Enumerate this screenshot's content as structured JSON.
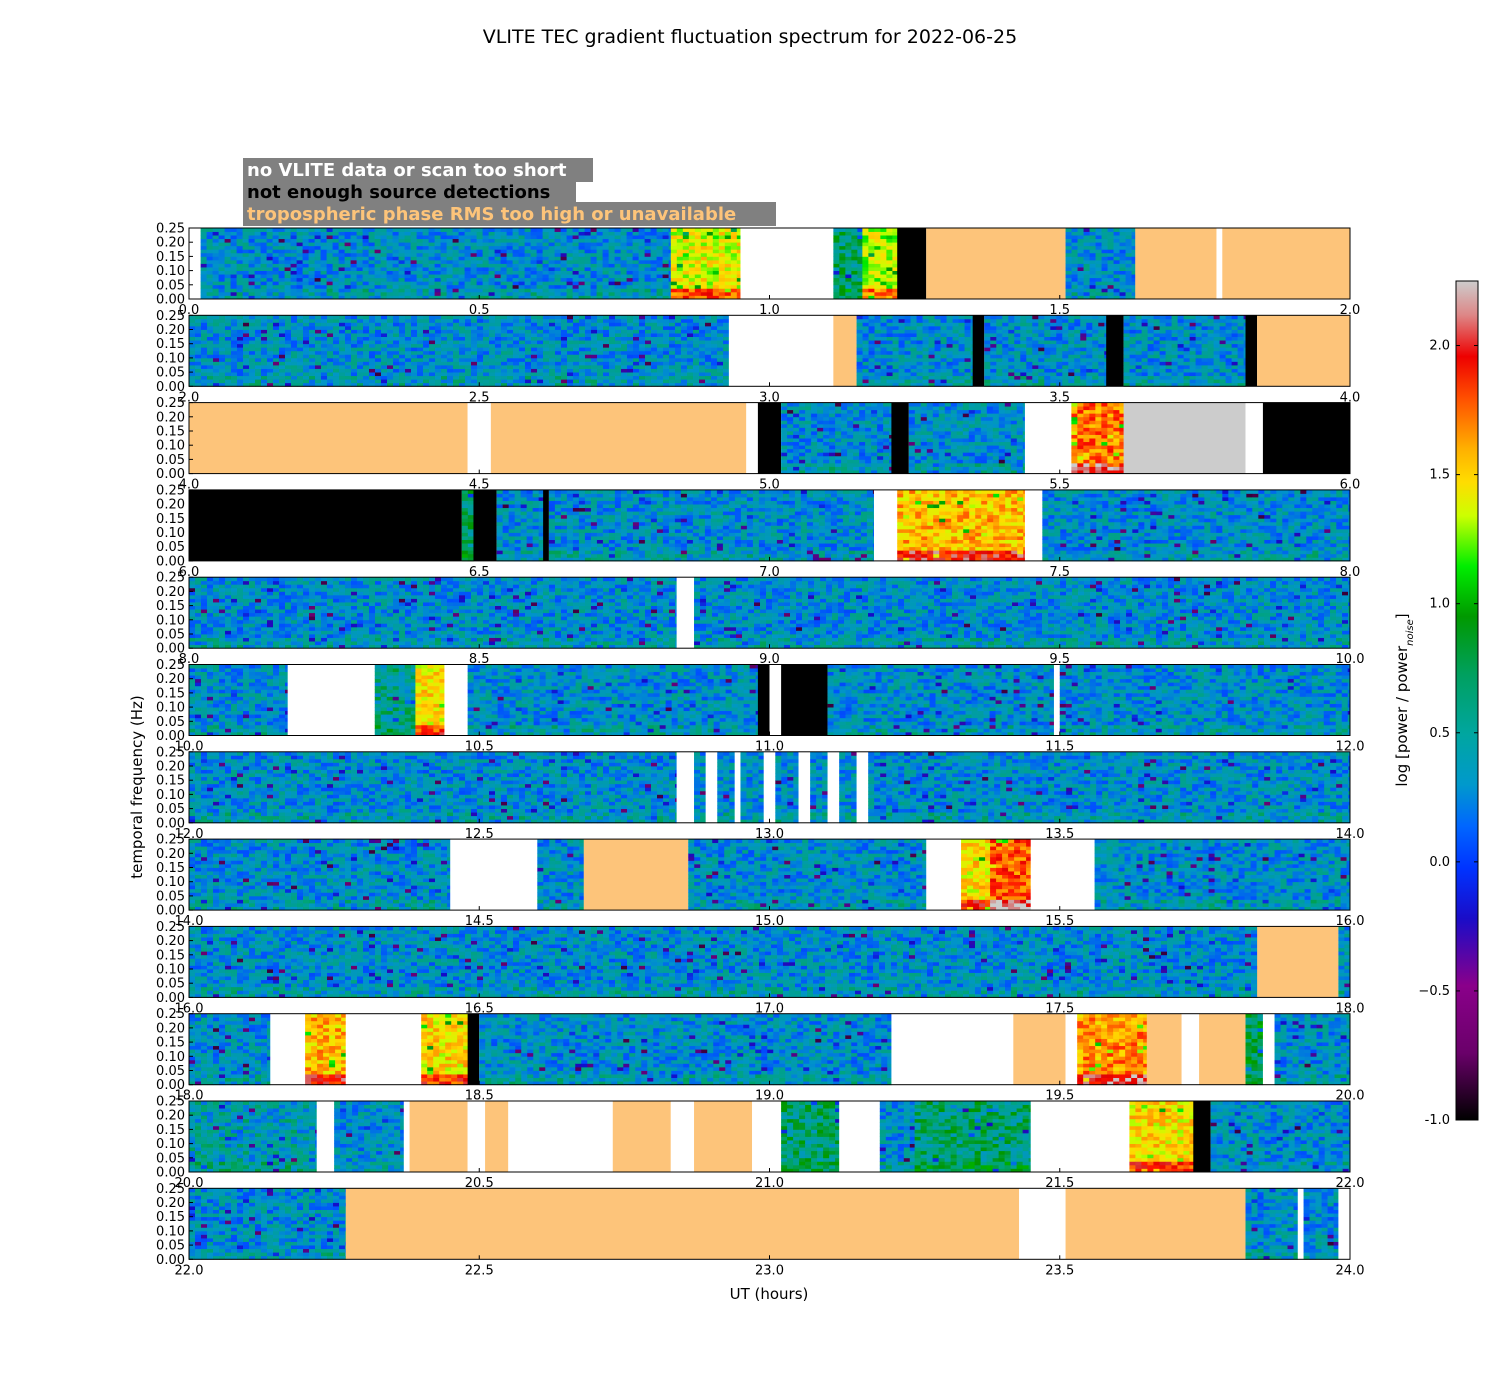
{
  "chart_data": {
    "type": "heatmap",
    "title": "VLITE TEC gradient fluctuation spectrum for 2022-06-25",
    "xlabel": "UT (hours)",
    "ylabel": "temporal frequency (Hz)",
    "colorbar_label": "log [power / power",
    "colorbar_label_sub": "noise",
    "colorbar_label_end": "]",
    "colorbar_range": [
      -1.0,
      2.25
    ],
    "colorbar_ticks": [
      "-1.0",
      "−0.5",
      "0.0",
      "0.5",
      "1.0",
      "1.5",
      "2.0"
    ],
    "colorbar_tick_values": [
      -1.0,
      -0.5,
      0.0,
      0.5,
      1.0,
      1.5,
      2.0
    ],
    "ylim": [
      0.0,
      0.25
    ],
    "y_ticks": [
      "0.00",
      "0.05",
      "0.10",
      "0.15",
      "0.20",
      "0.25"
    ],
    "legend": [
      {
        "label": "no VLITE data or scan too short",
        "text_color": "#ffffff",
        "bg_color": "#808080"
      },
      {
        "label": "not enough source detections",
        "text_color": "#000000",
        "bg_color": "#808080"
      },
      {
        "label": "tropospheric phase RMS too high or unavailable",
        "text_color": "#fdc47a",
        "bg_color": "#808080"
      }
    ],
    "flag_colors": {
      "nodata": "#ffffff",
      "nodet": "#000000",
      "trop": "#fdc47a",
      "saturated": "#cccccc"
    },
    "panels": [
      {
        "range": [
          0,
          2
        ],
        "ticks": [
          "0.0",
          "0.5",
          "1.0",
          "1.5",
          "2.0"
        ],
        "segments": [
          {
            "start": 0.0,
            "end": 0.02,
            "kind": "nodata"
          },
          {
            "start": 0.02,
            "end": 0.83,
            "kind": "data",
            "level": 0.0
          },
          {
            "start": 0.83,
            "end": 0.95,
            "kind": "data",
            "level": 1.2
          },
          {
            "start": 0.95,
            "end": 1.11,
            "kind": "nodata"
          },
          {
            "start": 1.11,
            "end": 1.16,
            "kind": "data",
            "level": 0.3
          },
          {
            "start": 1.16,
            "end": 1.22,
            "kind": "data",
            "level": 1.1
          },
          {
            "start": 1.22,
            "end": 1.27,
            "kind": "nodet"
          },
          {
            "start": 1.27,
            "end": 1.51,
            "kind": "trop"
          },
          {
            "start": 1.51,
            "end": 1.63,
            "kind": "data",
            "level": 0.0
          },
          {
            "start": 1.63,
            "end": 1.77,
            "kind": "trop"
          },
          {
            "start": 1.77,
            "end": 1.78,
            "kind": "nodata"
          },
          {
            "start": 1.78,
            "end": 2.0,
            "kind": "trop"
          }
        ]
      },
      {
        "range": [
          2,
          4
        ],
        "ticks": [
          "2.0",
          "2.5",
          "3.0",
          "3.5",
          "4.0"
        ],
        "segments": [
          {
            "start": 2.0,
            "end": 2.93,
            "kind": "data",
            "level": 0.0
          },
          {
            "start": 2.93,
            "end": 3.11,
            "kind": "nodata"
          },
          {
            "start": 3.11,
            "end": 3.15,
            "kind": "trop"
          },
          {
            "start": 3.15,
            "end": 3.35,
            "kind": "data",
            "level": 0.0
          },
          {
            "start": 3.35,
            "end": 3.37,
            "kind": "nodet"
          },
          {
            "start": 3.37,
            "end": 3.58,
            "kind": "data",
            "level": 0.0
          },
          {
            "start": 3.58,
            "end": 3.61,
            "kind": "nodet"
          },
          {
            "start": 3.61,
            "end": 3.82,
            "kind": "data",
            "level": 0.0
          },
          {
            "start": 3.82,
            "end": 3.84,
            "kind": "nodet"
          },
          {
            "start": 3.84,
            "end": 4.0,
            "kind": "trop"
          }
        ]
      },
      {
        "range": [
          4,
          6
        ],
        "ticks": [
          "4.0",
          "4.5",
          "5.0",
          "5.5",
          "6.0"
        ],
        "segments": [
          {
            "start": 4.0,
            "end": 4.48,
            "kind": "trop"
          },
          {
            "start": 4.48,
            "end": 4.52,
            "kind": "nodata"
          },
          {
            "start": 4.52,
            "end": 4.96,
            "kind": "trop"
          },
          {
            "start": 4.96,
            "end": 4.98,
            "kind": "nodata"
          },
          {
            "start": 4.98,
            "end": 5.02,
            "kind": "nodet"
          },
          {
            "start": 5.02,
            "end": 5.21,
            "kind": "data",
            "level": 0.0
          },
          {
            "start": 5.21,
            "end": 5.24,
            "kind": "nodet"
          },
          {
            "start": 5.24,
            "end": 5.44,
            "kind": "data",
            "level": 0.0
          },
          {
            "start": 5.44,
            "end": 5.52,
            "kind": "nodata"
          },
          {
            "start": 5.52,
            "end": 5.61,
            "kind": "data",
            "level": 1.6
          },
          {
            "start": 5.61,
            "end": 5.82,
            "kind": "saturated"
          },
          {
            "start": 5.82,
            "end": 5.85,
            "kind": "nodata"
          },
          {
            "start": 5.85,
            "end": 6.0,
            "kind": "nodet"
          }
        ]
      },
      {
        "range": [
          6,
          8
        ],
        "ticks": [
          "6.0",
          "6.5",
          "7.0",
          "7.5",
          "8.0"
        ],
        "segments": [
          {
            "start": 6.0,
            "end": 6.47,
            "kind": "nodet"
          },
          {
            "start": 6.47,
            "end": 6.49,
            "kind": "data",
            "level": 0.3
          },
          {
            "start": 6.49,
            "end": 6.53,
            "kind": "nodet"
          },
          {
            "start": 6.53,
            "end": 6.61,
            "kind": "data",
            "level": 0.0
          },
          {
            "start": 6.61,
            "end": 6.62,
            "kind": "nodet"
          },
          {
            "start": 6.62,
            "end": 7.18,
            "kind": "data",
            "level": 0.0
          },
          {
            "start": 7.18,
            "end": 7.22,
            "kind": "nodata"
          },
          {
            "start": 7.22,
            "end": 7.44,
            "kind": "data",
            "level": 1.4
          },
          {
            "start": 7.44,
            "end": 7.47,
            "kind": "nodata"
          },
          {
            "start": 7.47,
            "end": 8.0,
            "kind": "data",
            "level": 0.0
          }
        ]
      },
      {
        "range": [
          8,
          10
        ],
        "ticks": [
          "8.0",
          "8.5",
          "9.0",
          "9.5",
          "10.0"
        ],
        "segments": [
          {
            "start": 8.0,
            "end": 8.84,
            "kind": "data",
            "level": 0.0
          },
          {
            "start": 8.84,
            "end": 8.87,
            "kind": "nodata"
          },
          {
            "start": 8.87,
            "end": 10.0,
            "kind": "data",
            "level": 0.0
          }
        ]
      },
      {
        "range": [
          10,
          12
        ],
        "ticks": [
          "10.0",
          "10.5",
          "11.0",
          "11.5",
          "12.0"
        ],
        "segments": [
          {
            "start": 10.0,
            "end": 10.17,
            "kind": "data",
            "level": 0.0
          },
          {
            "start": 10.17,
            "end": 10.32,
            "kind": "nodata"
          },
          {
            "start": 10.32,
            "end": 10.39,
            "kind": "data",
            "level": 0.2
          },
          {
            "start": 10.39,
            "end": 10.44,
            "kind": "data",
            "level": 1.3
          },
          {
            "start": 10.44,
            "end": 10.48,
            "kind": "nodata"
          },
          {
            "start": 10.48,
            "end": 10.98,
            "kind": "data",
            "level": 0.0
          },
          {
            "start": 10.98,
            "end": 11.0,
            "kind": "nodet"
          },
          {
            "start": 11.0,
            "end": 11.02,
            "kind": "nodata"
          },
          {
            "start": 11.02,
            "end": 11.1,
            "kind": "nodet"
          },
          {
            "start": 11.1,
            "end": 11.49,
            "kind": "data",
            "level": 0.0
          },
          {
            "start": 11.49,
            "end": 11.5,
            "kind": "nodata"
          },
          {
            "start": 11.5,
            "end": 12.0,
            "kind": "data",
            "level": 0.0
          }
        ]
      },
      {
        "range": [
          12,
          14
        ],
        "ticks": [
          "12.0",
          "12.5",
          "13.0",
          "13.5",
          "14.0"
        ],
        "segments": [
          {
            "start": 12.0,
            "end": 12.84,
            "kind": "data",
            "level": 0.0
          },
          {
            "start": 12.84,
            "end": 12.87,
            "kind": "nodata"
          },
          {
            "start": 12.87,
            "end": 12.89,
            "kind": "data",
            "level": 0.0
          },
          {
            "start": 12.89,
            "end": 12.91,
            "kind": "nodata"
          },
          {
            "start": 12.91,
            "end": 12.94,
            "kind": "data",
            "level": 0.0
          },
          {
            "start": 12.94,
            "end": 12.95,
            "kind": "nodata"
          },
          {
            "start": 12.95,
            "end": 12.99,
            "kind": "data",
            "level": 0.0
          },
          {
            "start": 12.99,
            "end": 13.01,
            "kind": "nodata"
          },
          {
            "start": 13.01,
            "end": 13.05,
            "kind": "data",
            "level": 0.0
          },
          {
            "start": 13.05,
            "end": 13.07,
            "kind": "nodata"
          },
          {
            "start": 13.07,
            "end": 13.1,
            "kind": "data",
            "level": 0.0
          },
          {
            "start": 13.1,
            "end": 13.12,
            "kind": "nodata"
          },
          {
            "start": 13.12,
            "end": 13.15,
            "kind": "data",
            "level": 0.0
          },
          {
            "start": 13.15,
            "end": 13.17,
            "kind": "nodata"
          },
          {
            "start": 13.17,
            "end": 14.0,
            "kind": "data",
            "level": 0.0
          }
        ]
      },
      {
        "range": [
          14,
          16
        ],
        "ticks": [
          "14.0",
          "14.5",
          "15.0",
          "15.5",
          "16.0"
        ],
        "segments": [
          {
            "start": 14.0,
            "end": 14.45,
            "kind": "data",
            "level": 0.0
          },
          {
            "start": 14.45,
            "end": 14.6,
            "kind": "nodata"
          },
          {
            "start": 14.6,
            "end": 14.68,
            "kind": "data",
            "level": 0.0
          },
          {
            "start": 14.68,
            "end": 14.86,
            "kind": "trop"
          },
          {
            "start": 14.86,
            "end": 15.27,
            "kind": "data",
            "level": 0.0
          },
          {
            "start": 15.27,
            "end": 15.33,
            "kind": "nodata"
          },
          {
            "start": 15.33,
            "end": 15.38,
            "kind": "data",
            "level": 1.3
          },
          {
            "start": 15.38,
            "end": 15.45,
            "kind": "data",
            "level": 1.7
          },
          {
            "start": 15.45,
            "end": 15.56,
            "kind": "nodata"
          },
          {
            "start": 15.56,
            "end": 16.0,
            "kind": "data",
            "level": 0.0
          }
        ]
      },
      {
        "range": [
          16,
          18
        ],
        "ticks": [
          "16.0",
          "16.5",
          "17.0",
          "17.5",
          "18.0"
        ],
        "segments": [
          {
            "start": 16.0,
            "end": 17.84,
            "kind": "data",
            "level": 0.0
          },
          {
            "start": 17.84,
            "end": 17.98,
            "kind": "trop"
          },
          {
            "start": 17.98,
            "end": 18.0,
            "kind": "data",
            "level": 0.0
          }
        ]
      },
      {
        "range": [
          18,
          20
        ],
        "ticks": [
          "18.0",
          "18.5",
          "19.0",
          "19.5",
          "20.0"
        ],
        "segments": [
          {
            "start": 18.0,
            "end": 18.14,
            "kind": "data",
            "level": 0.0
          },
          {
            "start": 18.14,
            "end": 18.2,
            "kind": "nodata"
          },
          {
            "start": 18.2,
            "end": 18.27,
            "kind": "data",
            "level": 1.4
          },
          {
            "start": 18.27,
            "end": 18.4,
            "kind": "nodata"
          },
          {
            "start": 18.4,
            "end": 18.48,
            "kind": "data",
            "level": 1.3
          },
          {
            "start": 18.48,
            "end": 18.5,
            "kind": "nodet"
          },
          {
            "start": 18.5,
            "end": 19.21,
            "kind": "data",
            "level": 0.0
          },
          {
            "start": 19.21,
            "end": 19.42,
            "kind": "nodata"
          },
          {
            "start": 19.42,
            "end": 19.51,
            "kind": "trop"
          },
          {
            "start": 19.51,
            "end": 19.53,
            "kind": "nodata"
          },
          {
            "start": 19.53,
            "end": 19.65,
            "kind": "data",
            "level": 1.5
          },
          {
            "start": 19.65,
            "end": 19.71,
            "kind": "trop"
          },
          {
            "start": 19.71,
            "end": 19.74,
            "kind": "nodata"
          },
          {
            "start": 19.74,
            "end": 19.82,
            "kind": "trop"
          },
          {
            "start": 19.82,
            "end": 19.85,
            "kind": "data",
            "level": 0.4
          },
          {
            "start": 19.85,
            "end": 19.87,
            "kind": "nodata"
          },
          {
            "start": 19.87,
            "end": 20.0,
            "kind": "data",
            "level": 0.0
          }
        ]
      },
      {
        "range": [
          20,
          22
        ],
        "ticks": [
          "20.0",
          "20.5",
          "21.0",
          "21.5",
          "22.0"
        ],
        "segments": [
          {
            "start": 20.0,
            "end": 20.22,
            "kind": "data",
            "level": 0.1
          },
          {
            "start": 20.22,
            "end": 20.25,
            "kind": "nodata"
          },
          {
            "start": 20.25,
            "end": 20.37,
            "kind": "data",
            "level": 0.0
          },
          {
            "start": 20.37,
            "end": 20.38,
            "kind": "nodata"
          },
          {
            "start": 20.38,
            "end": 20.48,
            "kind": "trop"
          },
          {
            "start": 20.48,
            "end": 20.51,
            "kind": "nodata"
          },
          {
            "start": 20.51,
            "end": 20.55,
            "kind": "trop"
          },
          {
            "start": 20.55,
            "end": 20.73,
            "kind": "nodata"
          },
          {
            "start": 20.73,
            "end": 20.83,
            "kind": "trop"
          },
          {
            "start": 20.83,
            "end": 20.87,
            "kind": "nodata"
          },
          {
            "start": 20.87,
            "end": 20.97,
            "kind": "trop"
          },
          {
            "start": 20.97,
            "end": 21.02,
            "kind": "nodata"
          },
          {
            "start": 21.02,
            "end": 21.12,
            "kind": "data",
            "level": 0.3
          },
          {
            "start": 21.12,
            "end": 21.19,
            "kind": "nodata"
          },
          {
            "start": 21.19,
            "end": 21.25,
            "kind": "data",
            "level": 0.0
          },
          {
            "start": 21.25,
            "end": 21.45,
            "kind": "data",
            "level": 0.3
          },
          {
            "start": 21.45,
            "end": 21.62,
            "kind": "nodata"
          },
          {
            "start": 21.62,
            "end": 21.73,
            "kind": "data",
            "level": 1.3
          },
          {
            "start": 21.73,
            "end": 21.76,
            "kind": "nodet"
          },
          {
            "start": 21.76,
            "end": 22.0,
            "kind": "data",
            "level": 0.0
          }
        ]
      },
      {
        "range": [
          22,
          24
        ],
        "ticks": [
          "22.0",
          "22.5",
          "23.0",
          "23.5",
          "24.0"
        ],
        "segments": [
          {
            "start": 22.0,
            "end": 22.27,
            "kind": "data",
            "level": 0.0
          },
          {
            "start": 22.27,
            "end": 23.43,
            "kind": "trop"
          },
          {
            "start": 23.43,
            "end": 23.51,
            "kind": "nodata"
          },
          {
            "start": 23.51,
            "end": 23.82,
            "kind": "trop"
          },
          {
            "start": 23.82,
            "end": 23.91,
            "kind": "data",
            "level": 0.0
          },
          {
            "start": 23.91,
            "end": 23.92,
            "kind": "nodata"
          },
          {
            "start": 23.92,
            "end": 23.98,
            "kind": "data",
            "level": 0.0
          },
          {
            "start": 23.98,
            "end": 24.0,
            "kind": "nodata"
          }
        ]
      }
    ]
  }
}
